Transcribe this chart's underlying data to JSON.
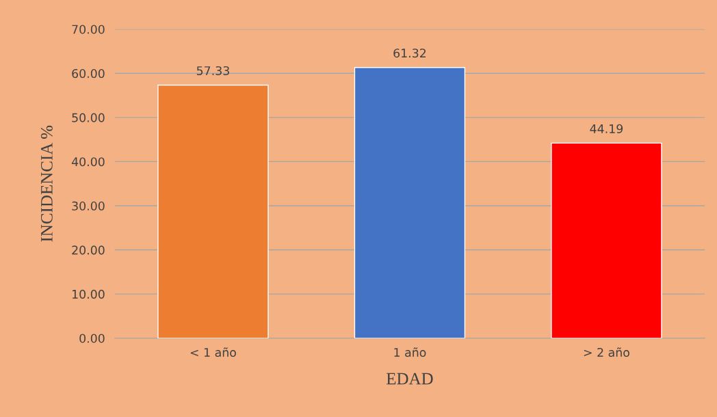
{
  "chart_data": {
    "type": "bar",
    "xlabel": "EDAD",
    "ylabel": "INCIDENCIA %",
    "categories": [
      "< 1 año",
      "1 año",
      "> 2 año"
    ],
    "values": [
      57.33,
      61.32,
      44.19
    ],
    "colors": [
      "#ed7d31",
      "#4472c4",
      "#ff0000"
    ],
    "ylim": [
      0,
      70
    ],
    "yticks": [
      {
        "value": 0,
        "label": "0.00"
      },
      {
        "value": 10,
        "label": "10.00"
      },
      {
        "value": 20,
        "label": "20.00"
      },
      {
        "value": 30,
        "label": "30.00"
      },
      {
        "value": 40,
        "label": "40.00"
      },
      {
        "value": 50,
        "label": "50.00"
      },
      {
        "value": 60,
        "label": "60.00"
      },
      {
        "value": 70,
        "label": "70.00"
      }
    ],
    "grid": "y",
    "legend": false,
    "value_labels": [
      "57.33",
      "61.32",
      "44.19"
    ]
  }
}
